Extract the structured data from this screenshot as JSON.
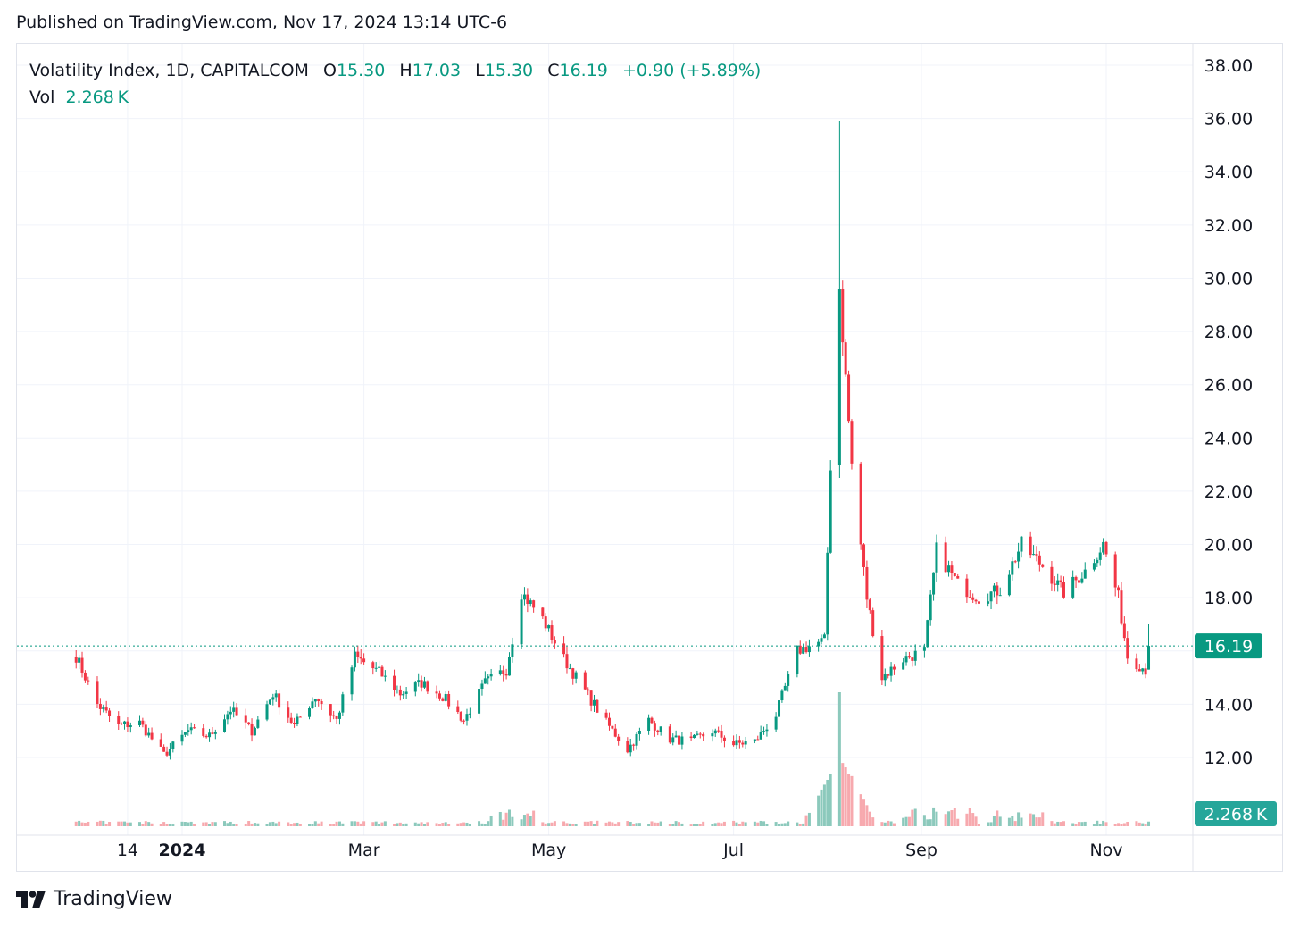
{
  "header": {
    "published": "Published on TradingView.com, Nov 17, 2024 13:14 UTC-6"
  },
  "legend": {
    "symbol": "Volatility Index, 1D, CAPITALCOM",
    "open_label": "O",
    "open": "15.30",
    "high_label": "H",
    "high": "17.03",
    "low_label": "L",
    "low": "15.30",
    "close_label": "C",
    "close": "16.19",
    "change": "+0.90 (+5.89%)",
    "vol_label": "Vol",
    "vol": "2.268 K"
  },
  "footer": {
    "brand": "TradingView"
  },
  "colors": {
    "up": "#089981",
    "down": "#f23645",
    "vol_up": "#8cc9bc",
    "vol_down": "#f7a9ae",
    "grid": "#f0f3fa",
    "price_line": "#089981"
  },
  "chart_data": {
    "type": "candlestick",
    "y_range": [
      10.5,
      38.5
    ],
    "y_ticks": [
      "38.00",
      "36.00",
      "34.00",
      "32.00",
      "30.00",
      "28.00",
      "26.00",
      "24.00",
      "22.00",
      "20.00",
      "18.00",
      "16.00",
      "14.00",
      "12.00"
    ],
    "x_ticks": [
      {
        "label": "14",
        "date": "2023-12-14",
        "bold": false
      },
      {
        "label": "2024",
        "date": "2024-01-01",
        "bold": true
      },
      {
        "label": "Mar",
        "date": "2024-03-01",
        "bold": false
      },
      {
        "label": "May",
        "date": "2024-05-01",
        "bold": false
      },
      {
        "label": "Jul",
        "date": "2024-07-01",
        "bold": false
      },
      {
        "label": "Sep",
        "date": "2024-09-01",
        "bold": false
      },
      {
        "label": "Nov",
        "date": "2024-11-01",
        "bold": false
      }
    ],
    "last_price": "16.19",
    "last_volume": "2.268 K",
    "close_path": [
      [
        "2023-11-27",
        15.8
      ],
      [
        "2023-12-04",
        14.0
      ],
      [
        "2023-12-11",
        13.2
      ],
      [
        "2023-12-18",
        13.3
      ],
      [
        "2023-12-26",
        12.1
      ],
      [
        "2024-01-03",
        13.0
      ],
      [
        "2024-01-10",
        12.8
      ],
      [
        "2024-01-17",
        13.8
      ],
      [
        "2024-01-24",
        13.0
      ],
      [
        "2024-01-31",
        14.4
      ],
      [
        "2024-02-07",
        13.2
      ],
      [
        "2024-02-14",
        14.3
      ],
      [
        "2024-02-21",
        13.4
      ],
      [
        "2024-02-27",
        15.8
      ],
      [
        "2024-03-06",
        15.2
      ],
      [
        "2024-03-13",
        14.4
      ],
      [
        "2024-03-20",
        14.8
      ],
      [
        "2024-03-27",
        14.3
      ],
      [
        "2024-04-03",
        13.4
      ],
      [
        "2024-04-10",
        14.8
      ],
      [
        "2024-04-17",
        15.3
      ],
      [
        "2024-04-22",
        18.2
      ],
      [
        "2024-04-29",
        17.2
      ],
      [
        "2024-05-06",
        15.7
      ],
      [
        "2024-05-13",
        14.5
      ],
      [
        "2024-05-20",
        13.3
      ],
      [
        "2024-05-27",
        12.3
      ],
      [
        "2024-06-03",
        13.4
      ],
      [
        "2024-06-10",
        12.7
      ],
      [
        "2024-06-17",
        12.6
      ],
      [
        "2024-06-24",
        13.0
      ],
      [
        "2024-07-01",
        12.5
      ],
      [
        "2024-07-08",
        12.6
      ],
      [
        "2024-07-15",
        13.6
      ],
      [
        "2024-07-22",
        16.0
      ],
      [
        "2024-07-31",
        16.4
      ],
      [
        "2024-08-02",
        23.0
      ],
      [
        "2024-08-05",
        29.5
      ],
      [
        "2024-08-09",
        23.0
      ],
      [
        "2024-08-14",
        18.0
      ],
      [
        "2024-08-19",
        15.0
      ],
      [
        "2024-08-26",
        15.7
      ],
      [
        "2024-09-02",
        16.0
      ],
      [
        "2024-09-06",
        19.8
      ],
      [
        "2024-09-13",
        18.5
      ],
      [
        "2024-09-20",
        18.0
      ],
      [
        "2024-09-27",
        18.3
      ],
      [
        "2024-10-04",
        20.0
      ],
      [
        "2024-10-11",
        19.2
      ],
      [
        "2024-10-18",
        18.2
      ],
      [
        "2024-10-25",
        19.0
      ],
      [
        "2024-10-31",
        20.0
      ],
      [
        "2024-11-05",
        18.0
      ],
      [
        "2024-11-08",
        15.8
      ],
      [
        "2024-11-14",
        15.3
      ],
      [
        "2024-11-15",
        16.19
      ]
    ]
  }
}
